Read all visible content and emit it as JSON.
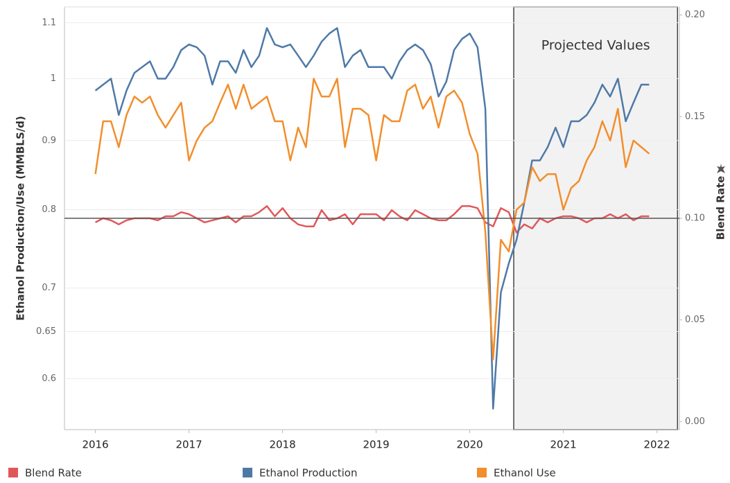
{
  "chart_data": {
    "type": "line",
    "y_label": "Ethanol Production/Use (MMBLS/d)",
    "y2_label": "Blend Rate",
    "x": [
      2016,
      2016.083,
      2016.167,
      2016.25,
      2016.333,
      2016.417,
      2016.5,
      2016.583,
      2016.667,
      2016.75,
      2016.833,
      2016.917,
      2017,
      2017.083,
      2017.167,
      2017.25,
      2017.333,
      2017.417,
      2017.5,
      2017.583,
      2017.667,
      2017.75,
      2017.833,
      2017.917,
      2018,
      2018.083,
      2018.167,
      2018.25,
      2018.333,
      2018.417,
      2018.5,
      2018.583,
      2018.667,
      2018.75,
      2018.833,
      2018.917,
      2019,
      2019.083,
      2019.167,
      2019.25,
      2019.333,
      2019.417,
      2019.5,
      2019.583,
      2019.667,
      2019.75,
      2019.833,
      2019.917,
      2020,
      2020.083,
      2020.167,
      2020.25,
      2020.333,
      2020.417,
      2020.5,
      2020.583,
      2020.667,
      2020.75,
      2020.833,
      2020.917,
      2021,
      2021.083,
      2021.167,
      2021.25,
      2021.333,
      2021.417,
      2021.5,
      2021.583,
      2021.667,
      2021.75,
      2021.833,
      2021.917
    ],
    "series": [
      {
        "name": "Blend Rate",
        "color": "#e15759",
        "axis": "y2",
        "values": [
          0.098,
          0.1,
          0.099,
          0.097,
          0.099,
          0.1,
          0.1,
          0.1,
          0.099,
          0.101,
          0.101,
          0.103,
          0.102,
          0.1,
          0.098,
          0.099,
          0.1,
          0.101,
          0.098,
          0.101,
          0.101,
          0.103,
          0.106,
          0.101,
          0.105,
          0.1,
          0.097,
          0.096,
          0.096,
          0.104,
          0.099,
          0.1,
          0.102,
          0.097,
          0.102,
          0.102,
          0.102,
          0.099,
          0.104,
          0.101,
          0.099,
          0.104,
          0.102,
          0.1,
          0.099,
          0.099,
          0.102,
          0.106,
          0.106,
          0.105,
          0.098,
          0.096,
          0.105,
          0.103,
          0.093,
          0.097,
          0.095,
          0.1,
          0.098,
          0.1,
          0.101,
          0.101,
          0.1,
          0.098,
          0.1,
          0.1,
          0.102,
          0.1,
          0.102,
          0.099,
          0.101,
          0.101
        ]
      },
      {
        "name": "Ethanol Production",
        "color": "#4e79a7",
        "values": [
          0.98,
          0.99,
          1.0,
          0.94,
          0.98,
          1.01,
          1.02,
          1.03,
          1.0,
          1.0,
          1.02,
          1.05,
          1.06,
          1.055,
          1.04,
          0.99,
          1.03,
          1.03,
          1.01,
          1.05,
          1.02,
          1.04,
          1.09,
          1.06,
          1.055,
          1.06,
          1.04,
          1.02,
          1.04,
          1.065,
          1.08,
          1.09,
          1.02,
          1.04,
          1.05,
          1.02,
          1.02,
          1.02,
          1.0,
          1.03,
          1.05,
          1.06,
          1.05,
          1.025,
          0.97,
          0.995,
          1.05,
          1.07,
          1.08,
          1.055,
          0.95,
          0.57,
          0.695,
          0.73,
          0.76,
          0.81,
          0.87,
          0.87,
          0.89,
          0.92,
          0.89,
          0.93,
          0.93,
          0.94,
          0.96,
          0.99,
          0.97,
          1.0,
          0.93,
          0.96,
          0.99,
          0.99
        ]
      },
      {
        "name": "Ethanol Use",
        "color": "#f28e2b",
        "values": [
          0.85,
          0.93,
          0.93,
          0.89,
          0.94,
          0.97,
          0.96,
          0.97,
          0.94,
          0.92,
          0.94,
          0.96,
          0.87,
          0.9,
          0.92,
          0.93,
          0.96,
          0.99,
          0.95,
          0.99,
          0.95,
          0.96,
          0.97,
          0.93,
          0.93,
          0.87,
          0.92,
          0.89,
          1.0,
          0.97,
          0.97,
          1.0,
          0.89,
          0.95,
          0.95,
          0.94,
          0.87,
          0.94,
          0.93,
          0.93,
          0.98,
          0.99,
          0.95,
          0.97,
          0.92,
          0.97,
          0.98,
          0.96,
          0.91,
          0.88,
          0.77,
          0.62,
          0.76,
          0.745,
          0.8,
          0.81,
          0.86,
          0.84,
          0.85,
          0.85,
          0.8,
          0.83,
          0.84,
          0.87,
          0.89,
          0.93,
          0.9,
          0.95,
          0.86,
          0.9,
          0.89,
          0.88
        ]
      }
    ],
    "xlim": [
      2015.67,
      2022.24
    ],
    "xticks": [
      2016,
      2017,
      2018,
      2019,
      2020,
      2021,
      2022
    ],
    "ylim": [
      0.55,
      1.13
    ],
    "yticks": [
      0.6,
      0.65,
      0.7,
      0.8,
      0.9,
      1,
      1.1
    ],
    "yscale": "log",
    "y2lim": [
      -0.004,
      0.204
    ],
    "y2ticks": [
      {
        "value": 0,
        "label": "0.00"
      },
      {
        "value": 0.05,
        "label": "0.05"
      },
      {
        "value": 0.1,
        "label": "0.10"
      },
      {
        "value": 0.15,
        "label": "0.15"
      },
      {
        "value": 0.2,
        "label": "0.20"
      }
    ],
    "reference_line": {
      "value": 0.1,
      "axis": "y2"
    },
    "projected_region": {
      "label": "Projected Values",
      "x": [
        2020.47,
        2022.22
      ]
    },
    "grid": true,
    "legend": "bottom"
  }
}
